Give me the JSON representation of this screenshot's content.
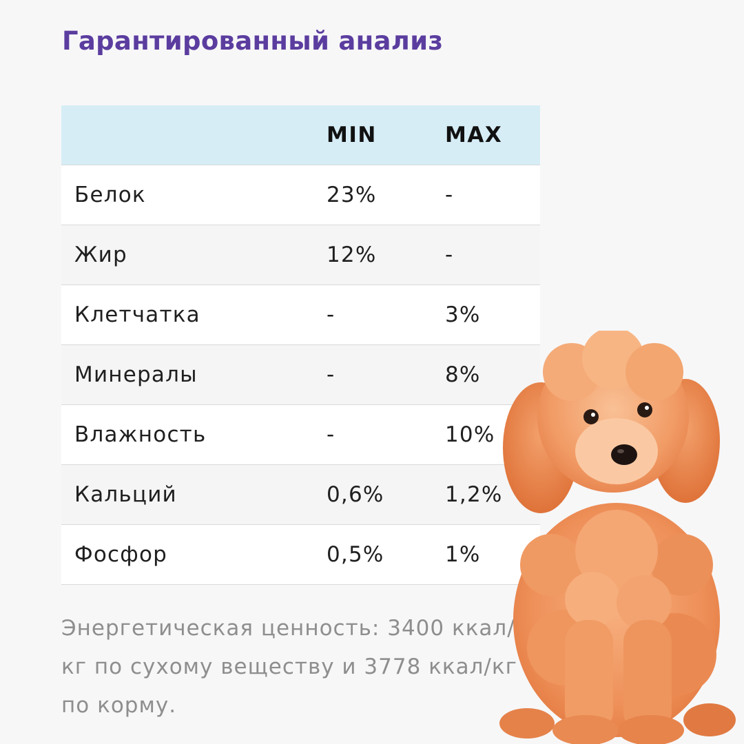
{
  "title": "Гарантированный анализ",
  "table": {
    "headers": {
      "name": "",
      "min": "MIN",
      "max": "MAX"
    },
    "rows": [
      {
        "name": "Белок",
        "min": "23%",
        "max": "-"
      },
      {
        "name": "Жир",
        "min": "12%",
        "max": "-"
      },
      {
        "name": "Клетчатка",
        "min": "-",
        "max": "3%"
      },
      {
        "name": "Минералы",
        "min": "-",
        "max": "8%"
      },
      {
        "name": "Влажность",
        "min": "-",
        "max": "10%"
      },
      {
        "name": "Кальций",
        "min": "0,6%",
        "max": "1,2%"
      },
      {
        "name": "Фосфор",
        "min": "0,5%",
        "max": "1%"
      }
    ]
  },
  "energy_note": "Энергетическая ценность: 3400 ккал/кг по сухому веществу и 3778 ккал/кг по корму.",
  "colors": {
    "title": "#5b3d9f",
    "header_bg": "#d6edf6",
    "note_text": "#8e8e8e",
    "dog_fur": "#f0925c"
  },
  "image": {
    "icon": "poodle-puppy-illustration"
  }
}
